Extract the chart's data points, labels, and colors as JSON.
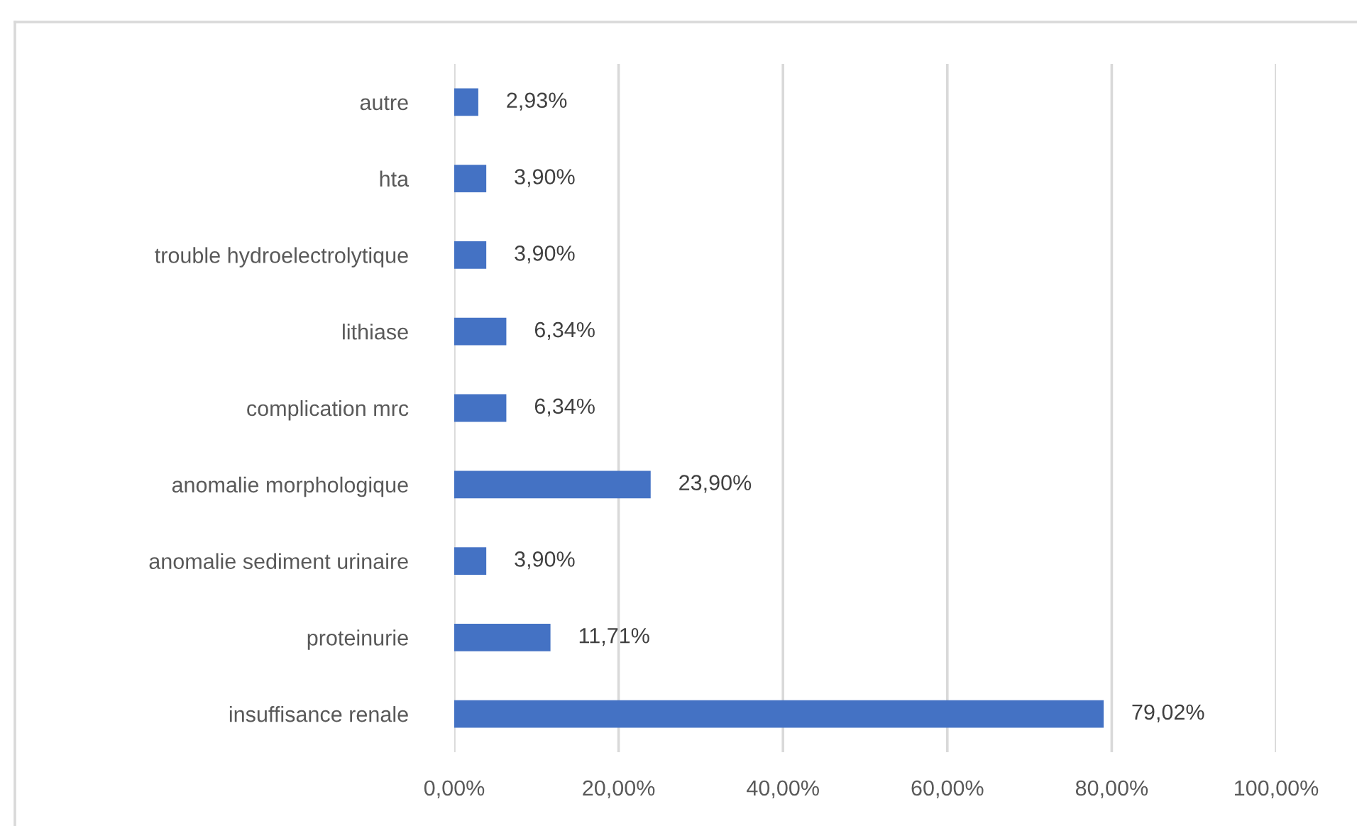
{
  "chart_data": {
    "type": "bar",
    "orientation": "horizontal",
    "categories": [
      "autre",
      "hta",
      "trouble hydroelectrolytique",
      "lithiase",
      "complication mrc",
      "anomalie morphologique",
      "anomalie sediment urinaire",
      "proteinurie",
      "insuffisance renale"
    ],
    "values": [
      2.93,
      3.9,
      3.9,
      6.34,
      6.34,
      23.9,
      3.9,
      11.71,
      79.02
    ],
    "value_labels": [
      "2,93%",
      "3,90%",
      "3,90%",
      "6,34%",
      "6,34%",
      "23,90%",
      "3,90%",
      "11,71%",
      "79,02%"
    ],
    "color": "#4472c4",
    "xlim": [
      0,
      100
    ],
    "xticks": [
      {
        "value": 0,
        "label": "0,00%"
      },
      {
        "value": 20,
        "label": "20,00%"
      },
      {
        "value": 40,
        "label": "40,00%"
      },
      {
        "value": 60,
        "label": "60,00%"
      },
      {
        "value": 80,
        "label": "80,00%"
      },
      {
        "value": 100,
        "label": "100,00%"
      }
    ],
    "grid": "x"
  }
}
